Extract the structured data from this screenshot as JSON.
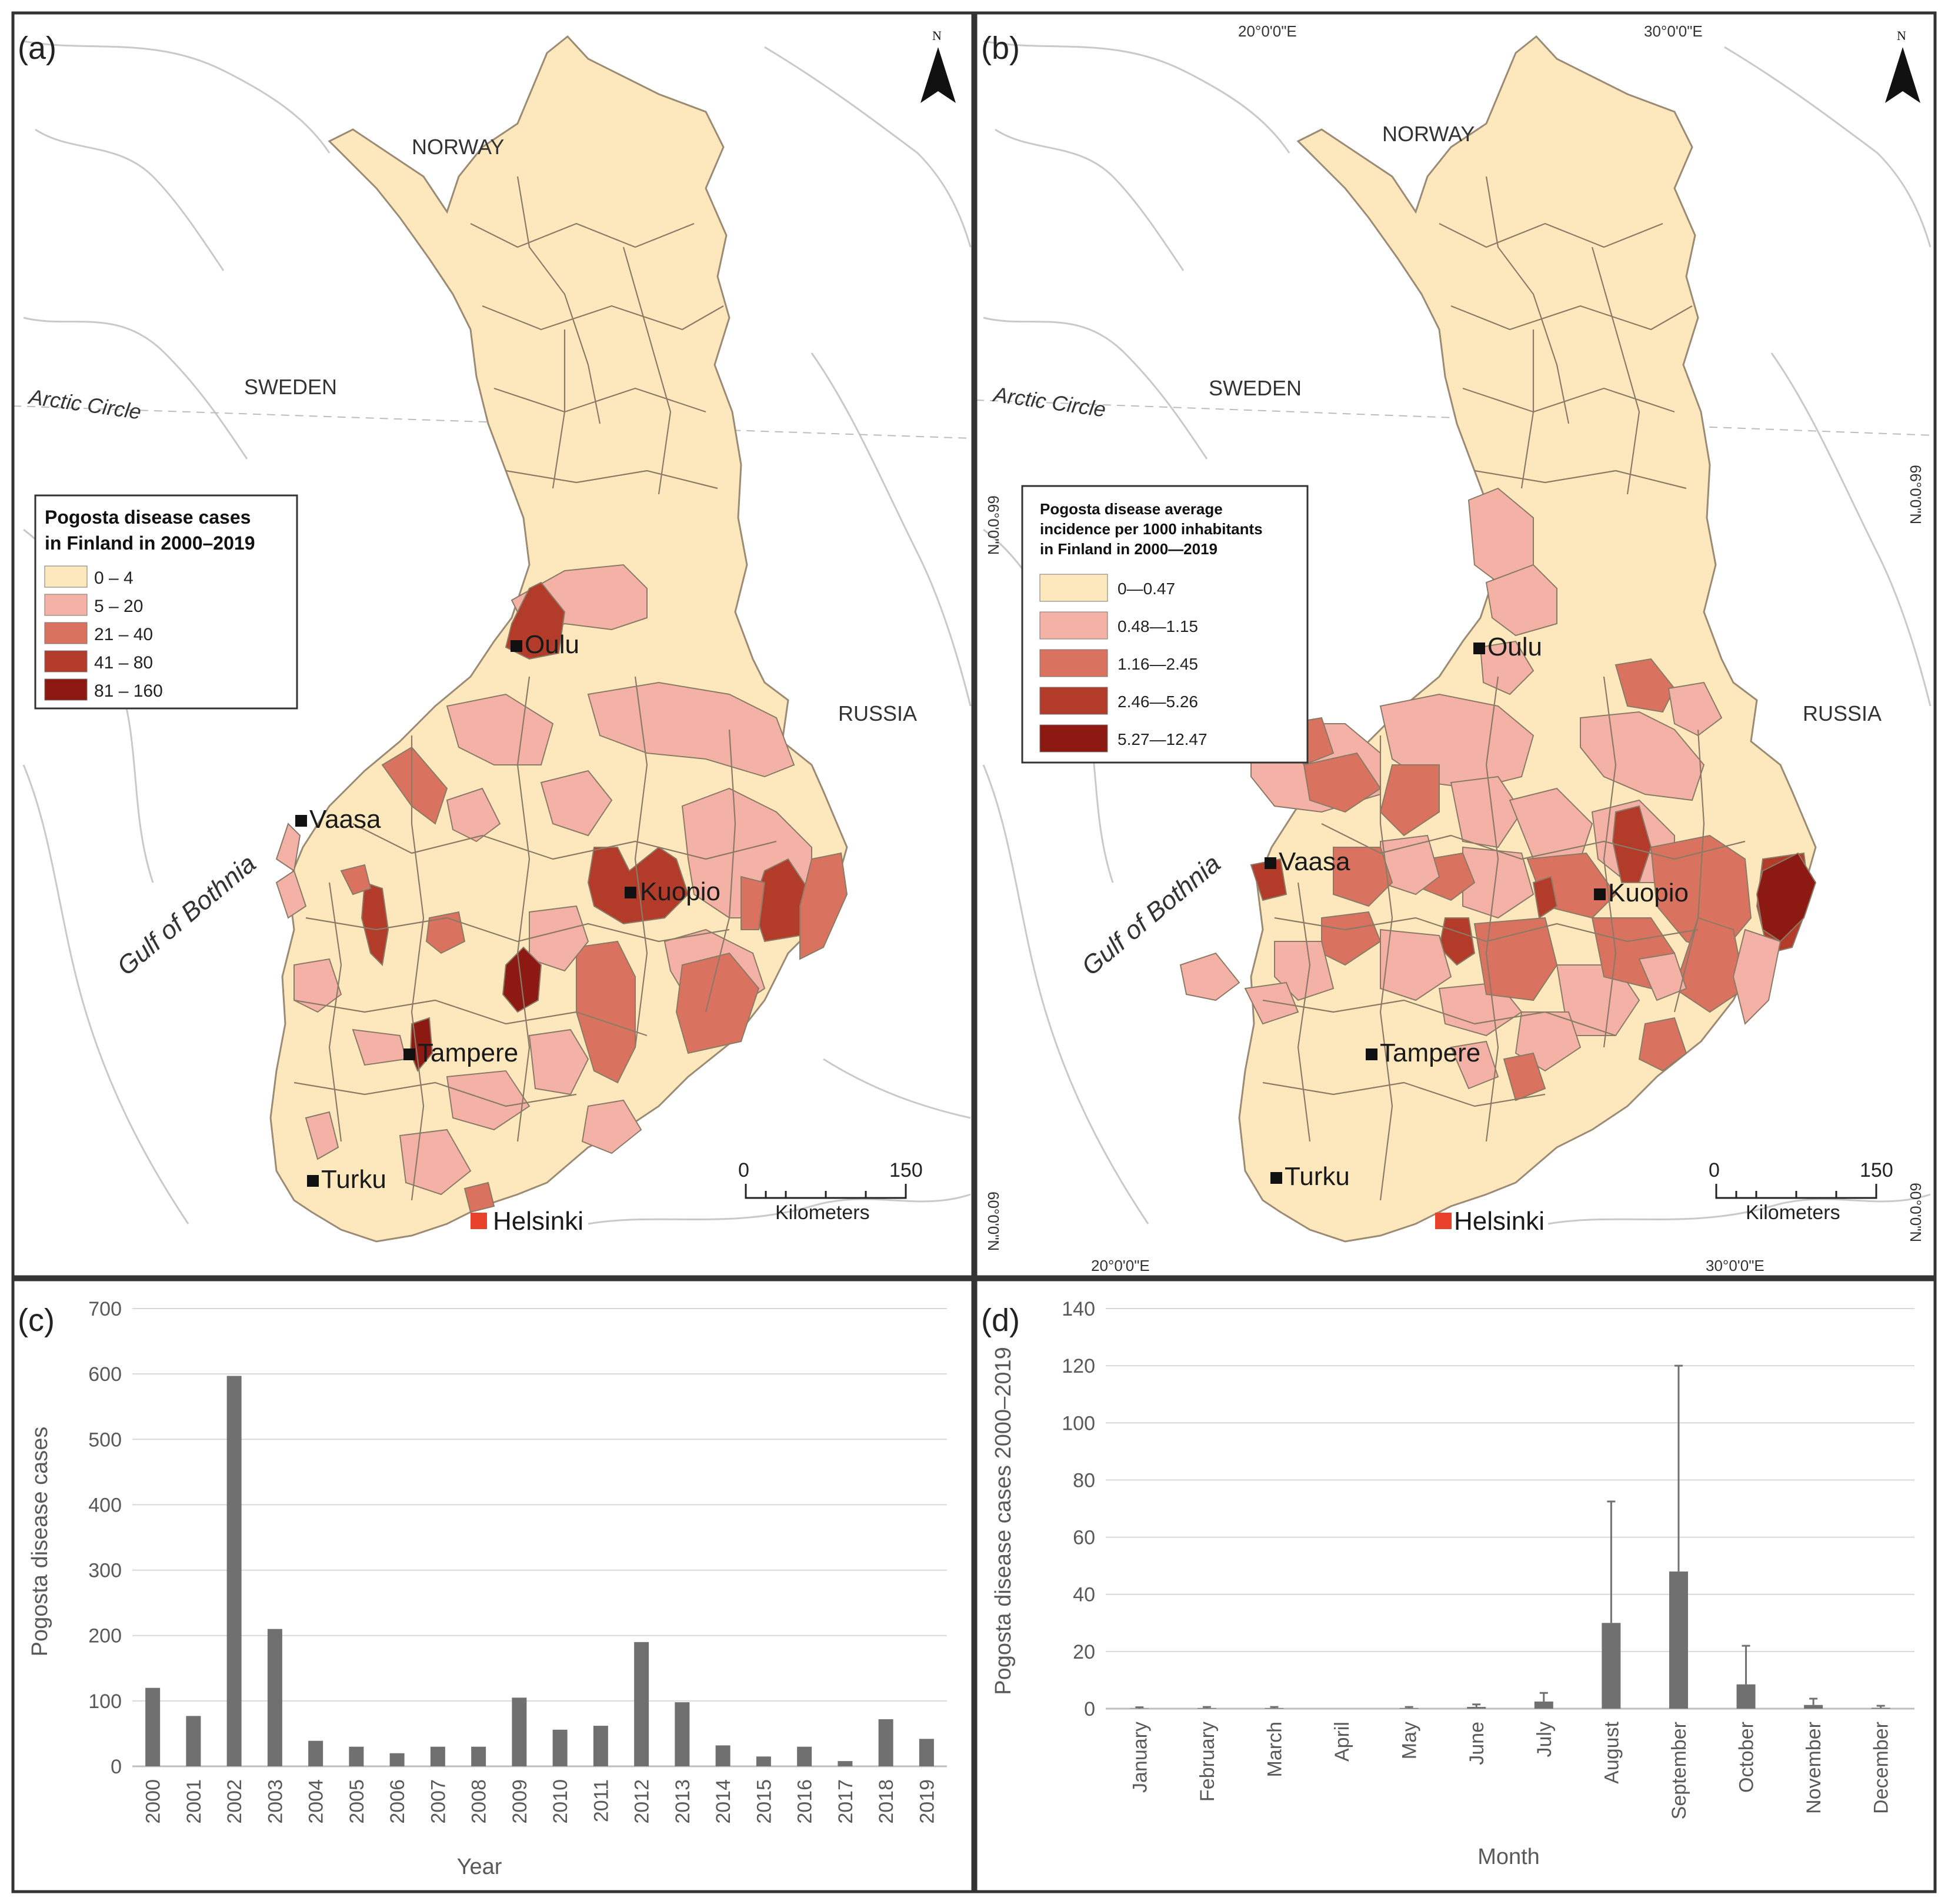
{
  "panels": {
    "a": {
      "letter": "(a)"
    },
    "b": {
      "letter": "(b)"
    },
    "c": {
      "letter": "(c)"
    },
    "d": {
      "letter": "(d)"
    }
  },
  "map_labels": {
    "norway": "NORWAY",
    "sweden": "SWEDEN",
    "russia": "RUSSIA",
    "arctic_circle": "Arctic Circle",
    "gulf": "Gulf of Bothnia",
    "north": "N",
    "cities": [
      "Oulu",
      "Vaasa",
      "Kuopio",
      "Tampere",
      "Turku",
      "Helsinki"
    ],
    "coords": {
      "top_20": "20°0'0\"E",
      "top_30": "30°0'0\"E",
      "bottom_20": "20°0'0\"E",
      "bottom_30": "30°0'0\"E",
      "lat_66_left": "66°0'0\"N",
      "lat_66_right": "66°0'0\"N",
      "lat_60_left": "60°0'0\"N",
      "lat_60_right": "60°0'0\"N"
    },
    "scale": {
      "start": "0",
      "end": "150",
      "unit": "Kilometers"
    }
  },
  "legend_a": {
    "title_lines": [
      "Pogosta disease cases",
      "in Finland in 2000–2019"
    ],
    "items": [
      {
        "label": "0 – 4",
        "color": "#fde8bd"
      },
      {
        "label": "5 – 20",
        "color": "#f4b1a6"
      },
      {
        "label": "21 – 40",
        "color": "#d9735f"
      },
      {
        "label": "41 – 80",
        "color": "#b23b2a"
      },
      {
        "label": "81 – 160",
        "color": "#8c1a12"
      }
    ]
  },
  "legend_b": {
    "title_lines": [
      "Pogosta disease average",
      "incidence per 1000 inhabitants",
      "in Finland in 2000—2019"
    ],
    "items": [
      {
        "label": "0—0.47",
        "color": "#fde8bd"
      },
      {
        "label": "0.48—1.15",
        "color": "#f4b1a6"
      },
      {
        "label": "1.16—2.45",
        "color": "#d9735f"
      },
      {
        "label": "2.46—5.26",
        "color": "#b23b2a"
      },
      {
        "label": "5.27—12.47",
        "color": "#8c1a12"
      }
    ]
  },
  "chart_data": [
    {
      "panel": "c",
      "type": "bar",
      "title": "",
      "xlabel": "Year",
      "ylabel": "Pogosta disease cases",
      "ylim": [
        0,
        700
      ],
      "yticks": [
        0,
        100,
        200,
        300,
        400,
        500,
        600,
        700
      ],
      "grid": true,
      "categories": [
        "2000",
        "2001",
        "2002",
        "2003",
        "2004",
        "2005",
        "2006",
        "2007",
        "2008",
        "2009",
        "2010",
        "2011",
        "2012",
        "2013",
        "2014",
        "2015",
        "2016",
        "2017",
        "2018",
        "2019"
      ],
      "values": [
        120,
        77,
        597,
        210,
        39,
        30,
        20,
        30,
        30,
        105,
        56,
        62,
        190,
        98,
        32,
        15,
        30,
        8,
        72,
        42
      ]
    },
    {
      "panel": "d",
      "type": "bar",
      "title": "",
      "xlabel": "Month",
      "ylabel": "Pogosta disease cases 2000–2019",
      "ylim": [
        0,
        140
      ],
      "yticks": [
        0,
        20,
        40,
        60,
        80,
        100,
        120,
        140
      ],
      "grid": true,
      "categories": [
        "January",
        "February",
        "March",
        "April",
        "May",
        "June",
        "July",
        "August",
        "September",
        "October",
        "November",
        "December"
      ],
      "values": [
        0.1,
        0.2,
        0.2,
        0,
        0.2,
        0.6,
        2.5,
        30,
        48,
        8.5,
        1.3,
        0.3
      ],
      "error_upper": [
        0.5,
        0.6,
        0.6,
        0,
        0.6,
        1.5,
        5.5,
        72.5,
        120,
        22,
        3.5,
        1
      ]
    }
  ]
}
